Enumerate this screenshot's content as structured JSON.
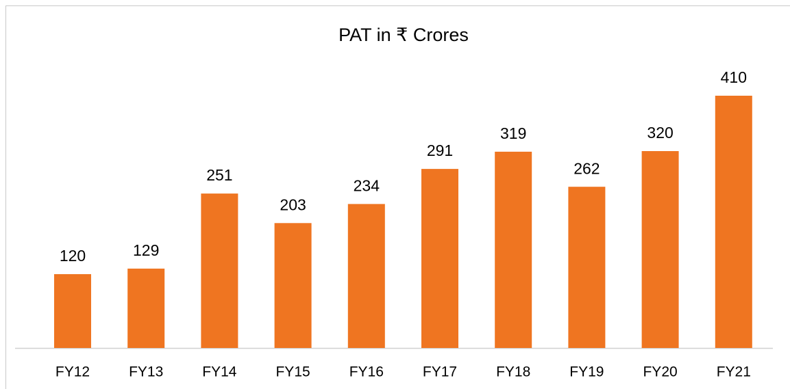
{
  "chart_data": {
    "type": "bar",
    "title": "PAT in ₹ Crores",
    "categories": [
      "FY12",
      "FY13",
      "FY14",
      "FY15",
      "FY16",
      "FY17",
      "FY18",
      "FY19",
      "FY20",
      "FY21"
    ],
    "values": [
      120,
      129,
      251,
      203,
      234,
      291,
      319,
      262,
      320,
      410
    ],
    "color": "#ef7521"
  }
}
